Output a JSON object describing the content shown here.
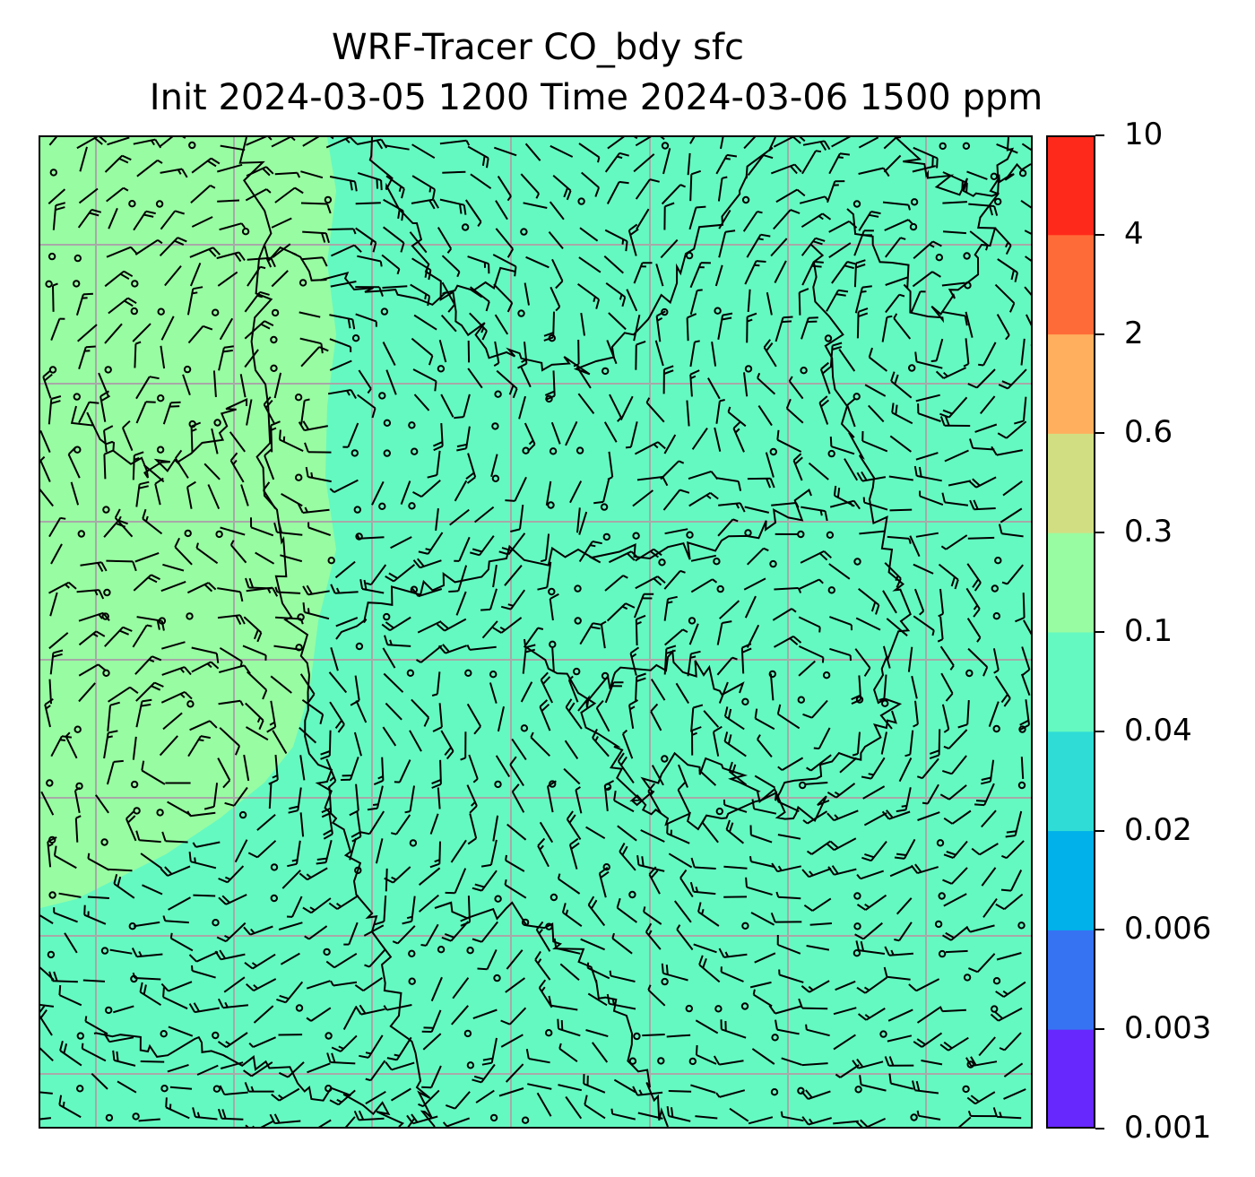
{
  "title": {
    "line1": "WRF-Tracer CO_bdy sfc",
    "line2": "Init 2024-03-05 1200 Time 2024-03-06 1500 ppm"
  },
  "chart_data": {
    "type": "heatmap",
    "variable": "CO_bdy",
    "level": "sfc",
    "units": "ppm",
    "init_time": "2024-03-05 1200",
    "valid_time": "2024-03-06 1500",
    "colorbar": {
      "levels": [
        "0.001",
        "0.003",
        "0.006",
        "0.02",
        "0.04",
        "0.1",
        "0.3",
        "0.6",
        "2",
        "4",
        "10"
      ],
      "colors": [
        "#6628fc",
        "#3673f3",
        "#00b1ea",
        "#2fdcd6",
        "#64f9c1",
        "#98fca2",
        "#d1df82",
        "#ffaf5e",
        "#ff6b38",
        "#ff291b"
      ]
    },
    "field_colors": {
      "background": "#64f9c1",
      "patch": "#98fca2"
    },
    "overlays": [
      "wind barbs",
      "coastlines",
      "lat/lon grid"
    ],
    "grid": true
  }
}
